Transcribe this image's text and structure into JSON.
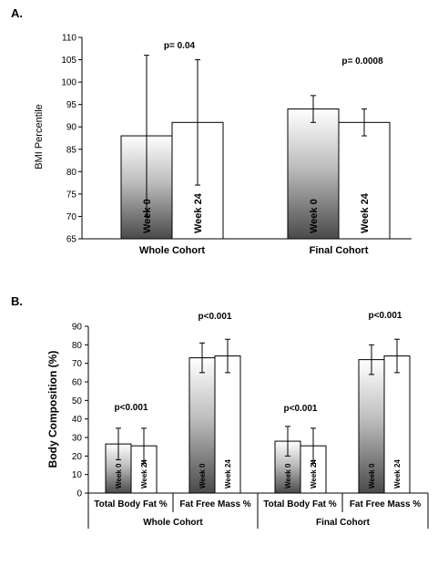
{
  "chart_data": [
    {
      "panel": "A.",
      "type": "bar",
      "ylabel": "BMI Percentile",
      "ylim": [
        65,
        110
      ],
      "yticks": [
        65,
        70,
        75,
        80,
        85,
        90,
        95,
        100,
        105,
        110
      ],
      "categories": [
        "Whole Cohort",
        "Final Cohort"
      ],
      "bar_labels": [
        "Week 0",
        "Week 24"
      ],
      "series": [
        {
          "label": "Week 0",
          "values": [
            88,
            94
          ],
          "err_low": [
            70,
            91
          ],
          "err_high": [
            106,
            97
          ],
          "fill": "gradient-gray"
        },
        {
          "label": "Week 24",
          "values": [
            91,
            91
          ],
          "err_low": [
            77,
            88
          ],
          "err_high": [
            105,
            94
          ],
          "fill": "white"
        }
      ],
      "annotations": [
        "p= 0.04",
        "p= 0.0008"
      ],
      "grid": false
    },
    {
      "panel": "B.",
      "type": "bar",
      "ylabel": "Body Composition (%)",
      "ylim": [
        0,
        90
      ],
      "yticks": [
        0,
        10,
        20,
        30,
        40,
        50,
        60,
        70,
        80,
        90
      ],
      "categories": [
        "Total Body Fat %",
        "Fat Free Mass %",
        "Total Body Fat %",
        "Fat Free Mass %"
      ],
      "groups": [
        "Whole Cohort",
        "Final Cohort"
      ],
      "bar_labels": [
        "Week 0",
        "Week 24"
      ],
      "series": [
        {
          "label": "Week 0",
          "values": [
            26.5,
            73,
            28,
            72
          ],
          "err_low": [
            18,
            65,
            20,
            64
          ],
          "err_high": [
            35,
            81,
            36,
            80
          ],
          "fill": "gradient-gray"
        },
        {
          "label": "Week 24",
          "values": [
            25.5,
            74,
            25.5,
            74
          ],
          "err_low": [
            16,
            65,
            16,
            65
          ],
          "err_high": [
            35,
            83,
            35,
            83
          ],
          "fill": "white"
        }
      ],
      "annotations": [
        "p<0.001",
        "p<0.001",
        "p<0.001",
        "p<0.001"
      ],
      "grid": false
    }
  ]
}
